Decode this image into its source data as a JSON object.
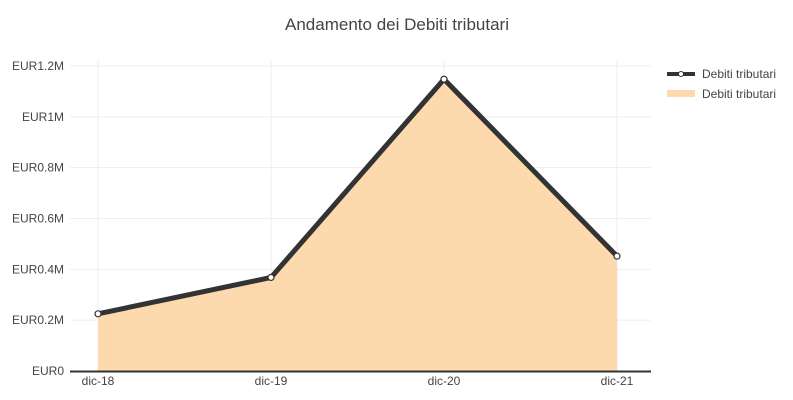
{
  "chart_data": {
    "type": "area",
    "title": "Andamento dei Debiti tributari",
    "xlabel": "",
    "ylabel": "",
    "categories": [
      "dic-18",
      "dic-19",
      "dic-20",
      "dic-21"
    ],
    "y_ticks": [
      "EUR0",
      "EUR0.2M",
      "EUR0.4M",
      "EUR0.6M",
      "EUR0.8M",
      "EUR1M",
      "EUR1.2M"
    ],
    "y_tick_values": [
      0,
      200000,
      400000,
      600000,
      800000,
      1000000,
      1200000
    ],
    "ylim": [
      0,
      1200000
    ],
    "grid": true,
    "legend_position": "top-right",
    "series": [
      {
        "name": "Debiti tributari",
        "kind": "line",
        "color": "#333333",
        "values": [
          225000,
          368000,
          1148000,
          452000
        ]
      },
      {
        "name": "Debiti tributari",
        "kind": "area",
        "color": "#fdd9ae",
        "values": [
          225000,
          368000,
          1148000,
          452000
        ]
      }
    ]
  }
}
